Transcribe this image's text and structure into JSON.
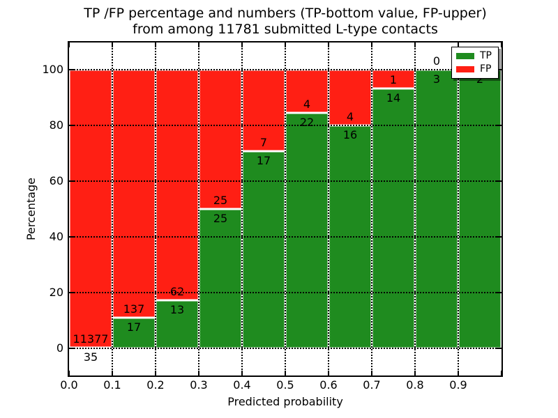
{
  "figure": {
    "title_line1": "TP /FP percentage and numbers (TP-bottom value, FP-upper)",
    "title_line2": "from among 11781 submitted L-type contacts"
  },
  "axes": {
    "xlabel": "Predicted probability",
    "ylabel": "Percentage",
    "x_tick_labels": [
      "0.0",
      "0.1",
      "0.2",
      "0.3",
      "0.4",
      "0.5",
      "0.6",
      "0.7",
      "0.8",
      "0.9"
    ],
    "y_tick_labels": [
      "0",
      "20",
      "40",
      "60",
      "80",
      "100"
    ]
  },
  "legend": {
    "position": "upper right",
    "shadow": true,
    "entries": [
      {
        "label": "TP",
        "color": "#1f8b1f"
      },
      {
        "label": "FP",
        "color": "#ff1f14"
      }
    ]
  },
  "chart_data": {
    "type": "bar",
    "stacked": true,
    "normalized_to_percent": true,
    "title": "TP /FP percentage and numbers (TP-bottom value, FP-upper) from among 11781 submitted L-type contacts",
    "xlabel": "Predicted probability",
    "ylabel": "Percentage",
    "total_contacts": 11781,
    "bin_width": 0.1,
    "bin_starts": [
      0.0,
      0.1,
      0.2,
      0.3,
      0.4,
      0.5,
      0.6,
      0.7,
      0.8,
      0.9
    ],
    "series": [
      {
        "name": "TP",
        "color": "#1f8b1f",
        "counts": [
          35,
          17,
          13,
          25,
          17,
          22,
          16,
          14,
          3,
          2
        ]
      },
      {
        "name": "FP",
        "color": "#ff1f14",
        "counts": [
          11377,
          137,
          62,
          25,
          7,
          4,
          4,
          1,
          0,
          0
        ]
      }
    ],
    "tp_percent": [
      0.31,
      11.04,
      17.33,
      50.0,
      70.83,
      84.62,
      80.0,
      93.33,
      100.0,
      100.0
    ],
    "y_ticks": [
      0,
      20,
      40,
      60,
      80,
      100
    ],
    "ylim": [
      -9.75,
      109.75
    ],
    "grid": "dotted",
    "legend_position": "upper right",
    "note_fp_label_last_bin": "hidden behind legend"
  }
}
